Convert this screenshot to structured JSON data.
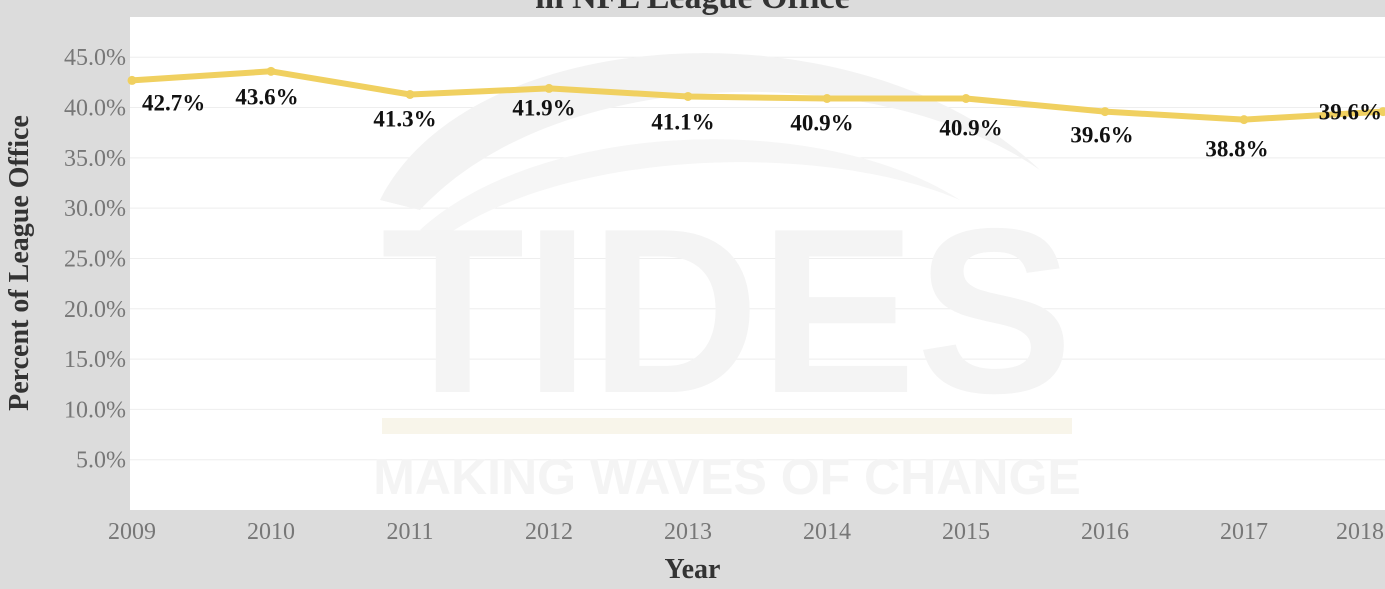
{
  "chart_data": {
    "type": "line",
    "title": "in NFL League Office",
    "xlabel": "Year",
    "ylabel": "Percent of League Office",
    "categories": [
      "2009",
      "2010",
      "2011",
      "2012",
      "2013",
      "2014",
      "2015",
      "2016",
      "2017",
      "2018"
    ],
    "series": [
      {
        "values": [
          42.7,
          43.6,
          41.3,
          41.9,
          41.1,
          40.9,
          40.9,
          39.6,
          38.8,
          39.6
        ],
        "labels": [
          "42.7%",
          "43.6%",
          "41.3%",
          "41.9%",
          "41.1%",
          "40.9%",
          "40.9%",
          "39.6%",
          "38.8%",
          "39.6%"
        ],
        "color": "#f0d060"
      }
    ],
    "yticks": [
      5,
      10,
      15,
      20,
      25,
      30,
      35,
      40,
      45
    ],
    "ytick_labels": [
      "5.0%",
      "10.0%",
      "15.0%",
      "20.0%",
      "25.0%",
      "30.0%",
      "35.0%",
      "40.0%",
      "45.0%"
    ],
    "ylim": [
      0,
      49
    ],
    "grid": true,
    "legend": "none"
  },
  "watermark": {
    "word": "TIDES",
    "tagline": "MAKING WAVES OF CHANGE"
  },
  "colors": {
    "frame": "#dcdcdc",
    "plot_bg": "#ffffff",
    "line": "#f0d060",
    "gridline": "#eeeeee"
  }
}
